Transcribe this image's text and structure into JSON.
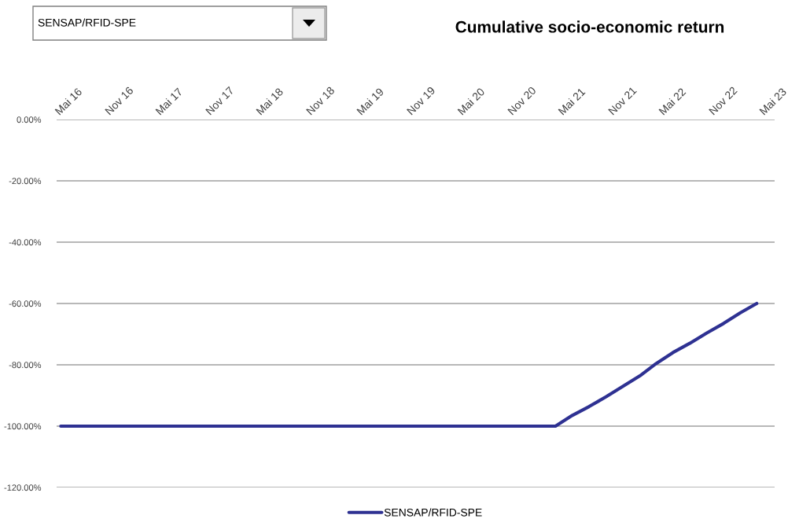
{
  "chart_data": {
    "type": "line",
    "title": "Cumulative socio-economic return",
    "annotations": [
      "SENSAP/RFID-SPE"
    ],
    "series": [
      {
        "name": "SENSAP/RFID-SPE",
        "color": "#2e3192",
        "x": [
          "2016-04",
          "2021-03",
          "2021-05",
          "2021-07",
          "2021-09",
          "2021-11",
          "2022-01",
          "2022-03",
          "2022-05",
          "2022-07",
          "2022-09",
          "2022-11",
          "2023-01",
          "2023-03"
        ],
        "values": [
          -100,
          -100,
          -96.5,
          -93.6,
          -90.4,
          -87.0,
          -83.6,
          -79.6,
          -76.0,
          -73.0,
          -69.6,
          -66.5,
          -63.0,
          -60
        ]
      }
    ],
    "xlim": [
      "2016-03-17",
      "2023-05-05"
    ],
    "xticks": [
      {
        "value": "2016-05",
        "label": "Mai 16"
      },
      {
        "value": "2016-11",
        "label": "Nov 16"
      },
      {
        "value": "2017-05",
        "label": "Mai 17"
      },
      {
        "value": "2017-11",
        "label": "Nov 17"
      },
      {
        "value": "2018-05",
        "label": "Mai 18"
      },
      {
        "value": "2018-11",
        "label": "Nov 18"
      },
      {
        "value": "2019-05",
        "label": "Mai 19"
      },
      {
        "value": "2019-11",
        "label": "Nov 19"
      },
      {
        "value": "2020-05",
        "label": "Mai 20"
      },
      {
        "value": "2020-11",
        "label": "Nov 20"
      },
      {
        "value": "2021-05",
        "label": "Mai 21"
      },
      {
        "value": "2021-11",
        "label": "Nov 21"
      },
      {
        "value": "2022-05",
        "label": "Mai 22"
      },
      {
        "value": "2022-11",
        "label": "Nov 22"
      },
      {
        "value": "2023-05",
        "label": "Mai 23"
      }
    ],
    "ylim": [
      -120,
      0
    ],
    "yticks": [
      {
        "value": 0,
        "label": "0.00%"
      },
      {
        "value": -20,
        "label": "-20.00%"
      },
      {
        "value": -40,
        "label": "-40.00%"
      },
      {
        "value": -60,
        "label": "-60.00%"
      },
      {
        "value": -80,
        "label": "-80.00%"
      },
      {
        "value": -100,
        "label": "-100.00%"
      },
      {
        "value": -120,
        "label": "-120.00%"
      }
    ],
    "grid": "y",
    "legend": "bottom",
    "marker": "none",
    "line_style": "solid"
  }
}
